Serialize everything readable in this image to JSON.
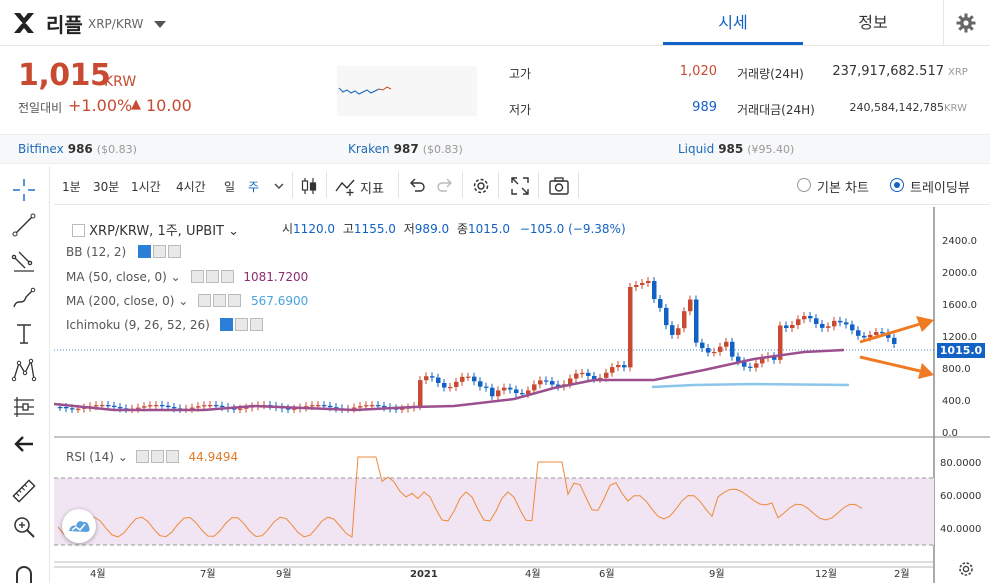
{
  "header": {
    "coin_name": "리플",
    "pair": "XRP/KRW",
    "tabs": [
      {
        "label": "시세"
      },
      {
        "label": "정보"
      }
    ]
  },
  "summary": {
    "price": "1,015",
    "unit": "KRW",
    "change_label": "전일대비",
    "change_rate": "+1.00%",
    "change_arrow": "▲",
    "change_amount": "10.00",
    "high_label": "고가",
    "high_value": "1,020",
    "low_label": "저가",
    "low_value": "989",
    "volume_label": "거래량(24H)",
    "volume_value": "237,917,682.517",
    "volume_unit": "XRP",
    "amount_label": "거래대금(24H)",
    "amount_value": "240,584,142,785",
    "amount_unit": "KRW"
  },
  "exchanges": [
    {
      "name": "Bitfinex",
      "price": "986",
      "diff": "($0.83)"
    },
    {
      "name": "Kraken",
      "price": "987",
      "diff": "($0.83)"
    },
    {
      "name": "Liquid",
      "price": "985",
      "diff": "(¥95.40)"
    }
  ],
  "toolbar": {
    "timeframes": [
      "1분",
      "30분",
      "1시간",
      "4시간",
      "일",
      "주"
    ],
    "active_timeframe": "주",
    "indicators_label": "지표",
    "chart_modes": [
      "기본 차트",
      "트레이딩뷰"
    ],
    "selected_mode": "트레이딩뷰"
  },
  "legend": {
    "title": "XRP/KRW, 1주, UPBIT",
    "open_label": "시",
    "open": "1120.0",
    "high_label": "고",
    "high": "1155.0",
    "low_label": "저",
    "low": "989.0",
    "close_label": "종",
    "close": "1015.0",
    "change": "−105.0 (−9.38%)"
  },
  "indicators": [
    {
      "name": "BB (12, 2)",
      "value": ""
    },
    {
      "name": "MA (50, close, 0)",
      "value": "1081.7200",
      "color": "#8e2c6e"
    },
    {
      "name": "MA (200, close, 0)",
      "value": "567.6900",
      "color": "#4aa3df"
    },
    {
      "name": "Ichimoku (9, 26, 52, 26)",
      "value": ""
    }
  ],
  "rsi": {
    "name": "RSI (14)",
    "value": "44.9494",
    "color": "#e07b2a"
  },
  "price_axis": [
    "2400.0",
    "2000.0",
    "1600.0",
    "1200.0",
    "800.0",
    "400.0",
    "0.0"
  ],
  "current_price_tag": "1015.0",
  "rsi_axis": [
    "80.0000",
    "60.0000",
    "40.0000"
  ],
  "time_axis": [
    "4월",
    "7월",
    "9월",
    "2021",
    "4월",
    "6월",
    "9월",
    "12월",
    "2월"
  ],
  "colors": {
    "up": "#c84a31",
    "down": "#1261c4",
    "accent": "#1261c4",
    "arrow": "#f07a24"
  }
}
